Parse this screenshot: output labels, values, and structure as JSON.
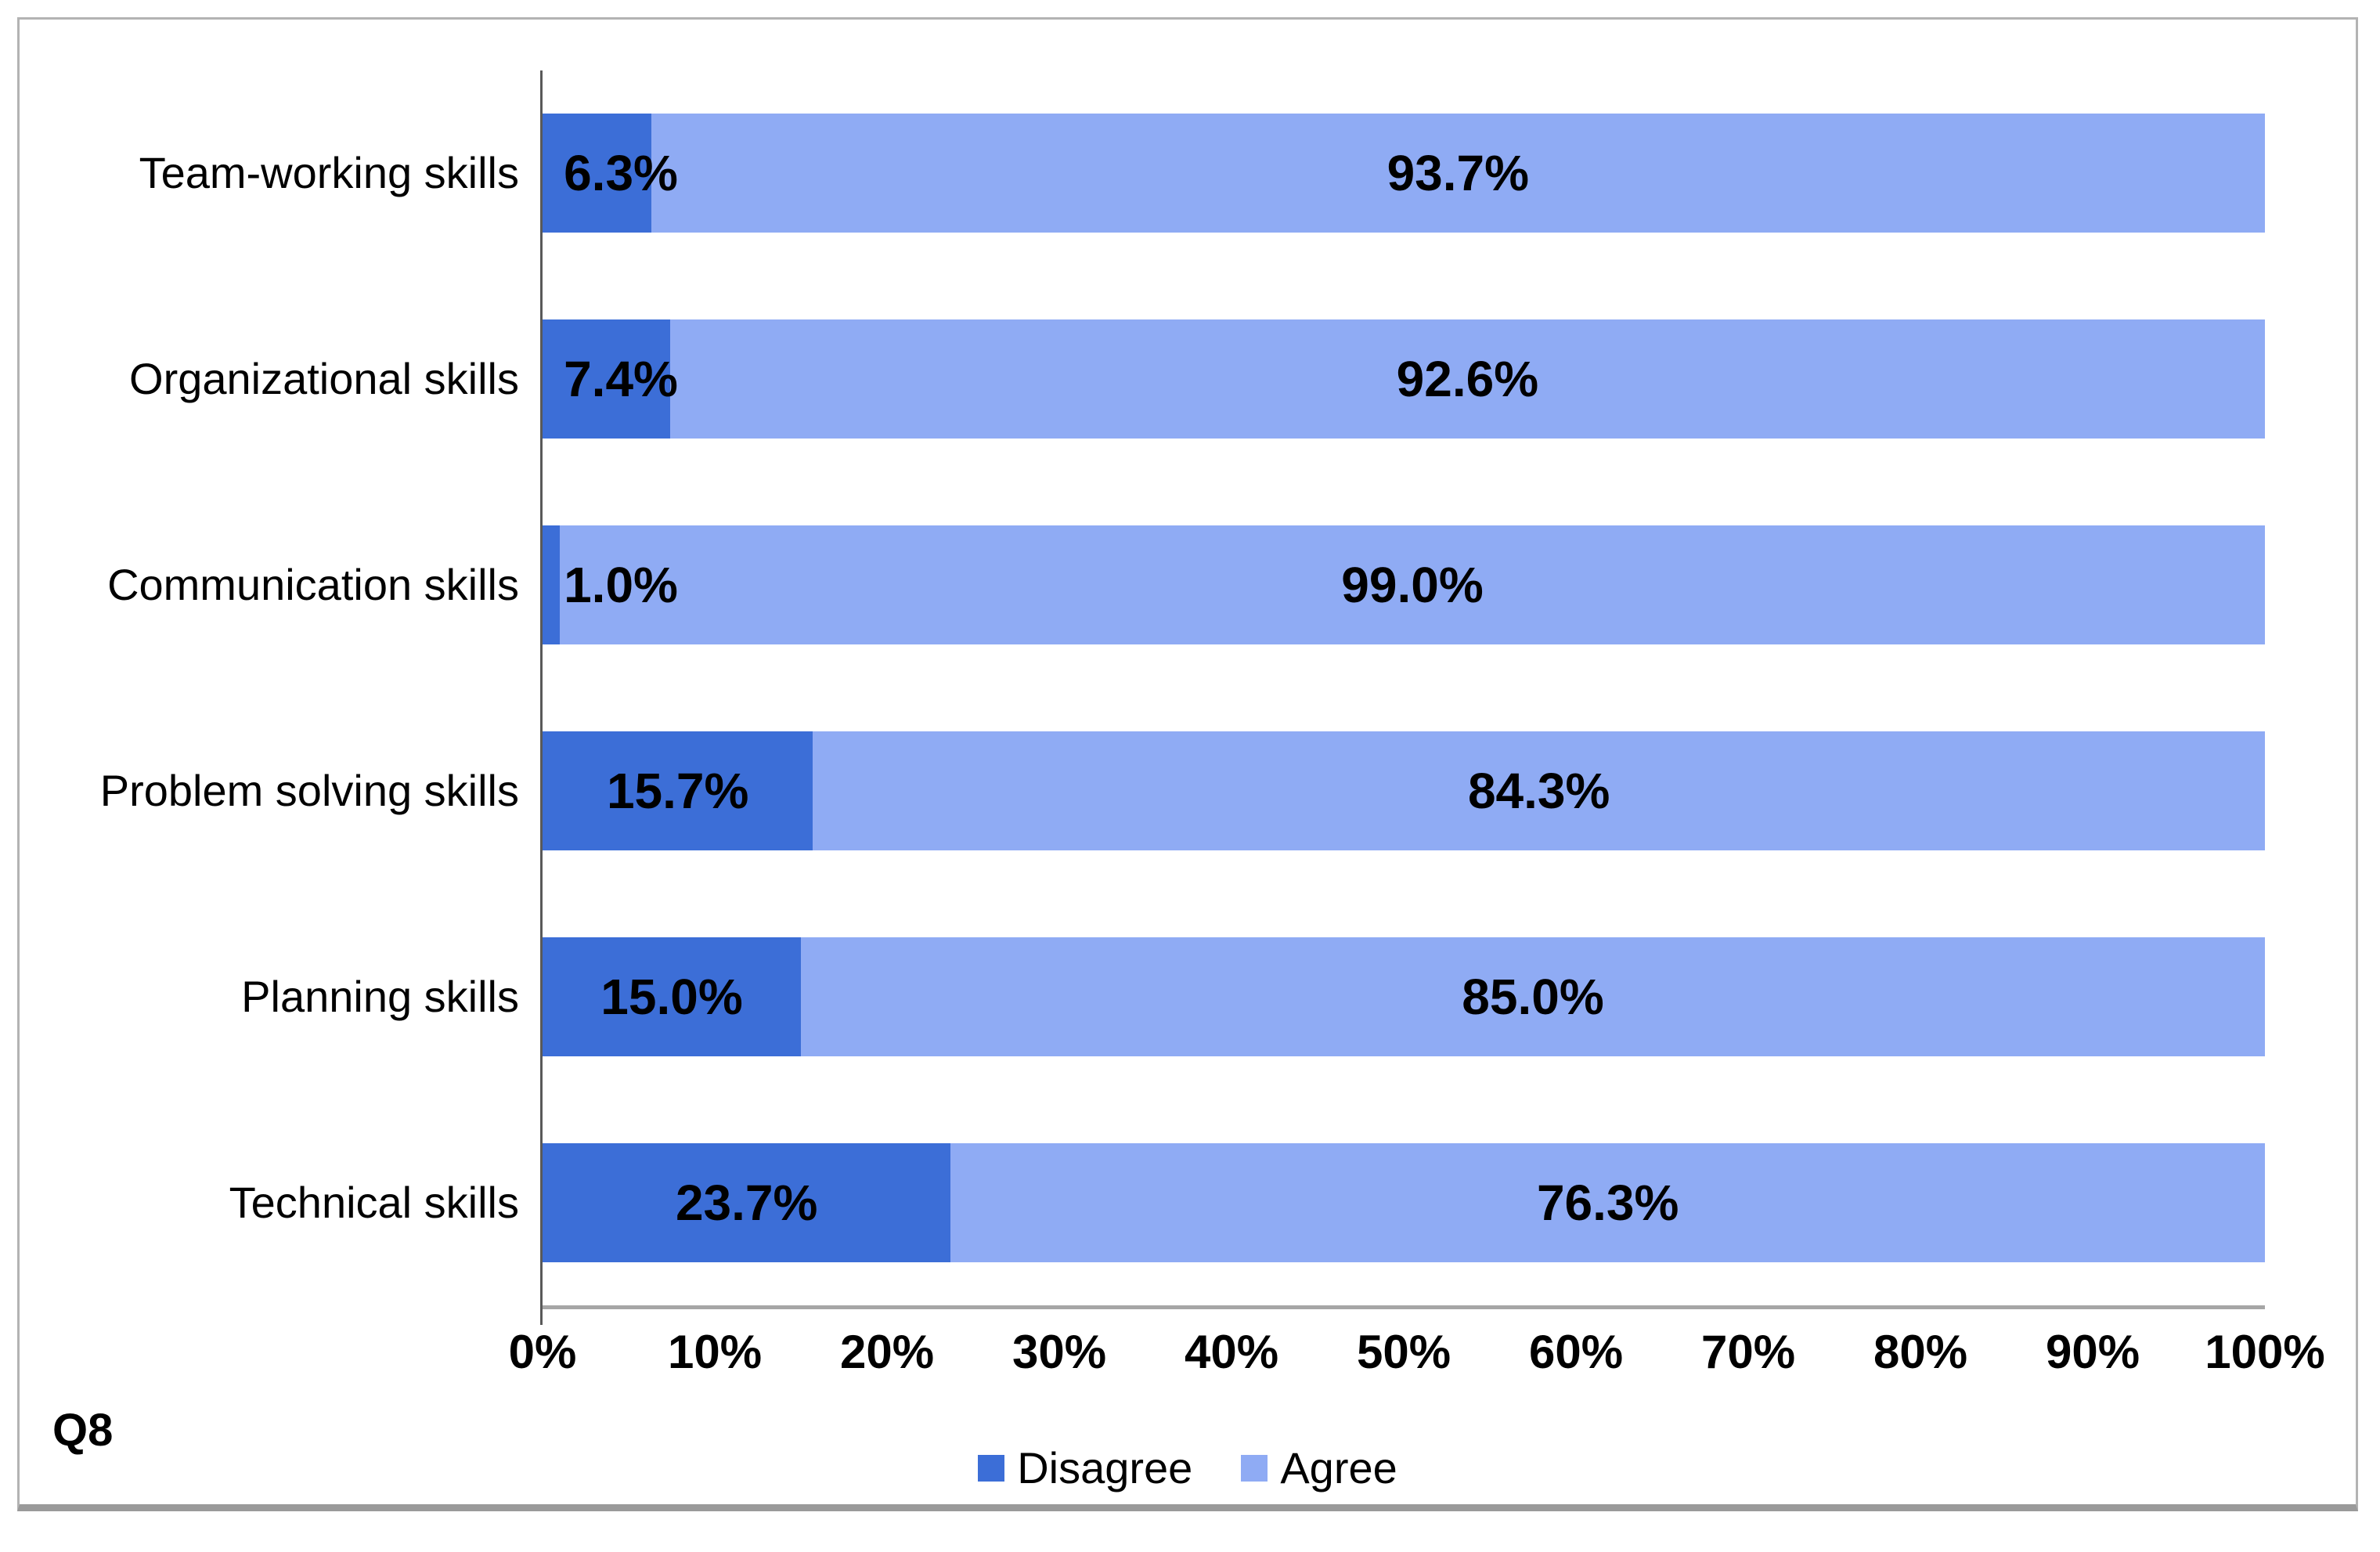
{
  "chart_data": {
    "type": "bar",
    "orientation": "horizontal",
    "stacked": true,
    "categories": [
      "Team-working skills",
      "Organizational skills",
      "Communication skills",
      "Problem solving skills",
      "Planning skills",
      "Technical skills"
    ],
    "series": [
      {
        "name": "Disagree",
        "color": "#3C6ED7",
        "values": [
          6.3,
          7.4,
          1.0,
          15.7,
          15.0,
          23.7
        ],
        "labels": [
          "6.3%",
          "7.4%",
          "1.0%",
          "15.7%",
          "15.0%",
          "23.7%"
        ]
      },
      {
        "name": "Agree",
        "color": "#8FABF4",
        "values": [
          93.7,
          92.6,
          99.0,
          84.3,
          85.0,
          76.3
        ],
        "labels": [
          "93.7%",
          "92.6%",
          "99.0%",
          "84.3%",
          "85.0%",
          "76.3%"
        ]
      }
    ],
    "x_ticks": [
      "0%",
      "10%",
      "20%",
      "30%",
      "40%",
      "50%",
      "60%",
      "70%",
      "80%",
      "90%",
      "100%"
    ],
    "xlim": [
      0,
      100
    ],
    "xlabel": "",
    "ylabel": "",
    "title": "",
    "grid": false,
    "legend_position": "bottom-center",
    "footnote": "Q8",
    "axis_color": "#595959",
    "x_axis_line_color": "#a6a6a6",
    "frame_border_color": "#b3b3b3"
  }
}
